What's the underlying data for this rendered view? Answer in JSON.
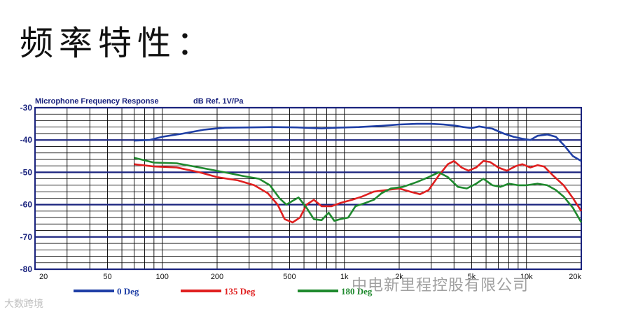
{
  "heading": "频率特性：",
  "watermark_right": "中电新里程控股有限公司",
  "watermark_left": "大数跨境",
  "chart_data": {
    "type": "line",
    "title": "Microphone Frequency Response",
    "units_label": "dB Ref. 1V/Pa",
    "x_scale": "log",
    "xlim": [
      20,
      20000
    ],
    "ylim": [
      -80,
      -30
    ],
    "y_ticks": [
      -30,
      -40,
      -50,
      -60,
      -70,
      -80
    ],
    "y_tick_labels": [
      "-30",
      "-40",
      "-50",
      "-60",
      "-70",
      "-80"
    ],
    "x_ticks": [
      20,
      50,
      100,
      200,
      500,
      1000,
      2000,
      5000,
      10000,
      20000
    ],
    "x_tick_labels": [
      "20",
      "50",
      "100",
      "200",
      "500",
      "1k",
      "2k",
      "5k",
      "10k",
      "20k"
    ],
    "grid": true,
    "legend_placement": "bottom",
    "series": [
      {
        "name": "0 Deg",
        "color": "#1f3fa6",
        "points": [
          [
            70,
            -40.2
          ],
          [
            85,
            -40
          ],
          [
            100,
            -39
          ],
          [
            130,
            -38
          ],
          [
            170,
            -36.8
          ],
          [
            220,
            -36.2
          ],
          [
            300,
            -36.1
          ],
          [
            400,
            -36
          ],
          [
            550,
            -36.1
          ],
          [
            750,
            -36.4
          ],
          [
            900,
            -36.2
          ],
          [
            1200,
            -36
          ],
          [
            1600,
            -35.6
          ],
          [
            2000,
            -35.2
          ],
          [
            2500,
            -35
          ],
          [
            3000,
            -35
          ],
          [
            3500,
            -35.2
          ],
          [
            4000,
            -35.5
          ],
          [
            4500,
            -36
          ],
          [
            5000,
            -36.3
          ],
          [
            5500,
            -35.8
          ],
          [
            6500,
            -36.5
          ],
          [
            7500,
            -38
          ],
          [
            8500,
            -39
          ],
          [
            9500,
            -39.6
          ],
          [
            10500,
            -40
          ],
          [
            11500,
            -38.7
          ],
          [
            13000,
            -38.3
          ],
          [
            14500,
            -39
          ],
          [
            16000,
            -41.5
          ],
          [
            18000,
            -45
          ],
          [
            20000,
            -46.5
          ]
        ]
      },
      {
        "name": "135 Deg",
        "color": "#e02020",
        "points": [
          [
            70,
            -47.5
          ],
          [
            90,
            -48.2
          ],
          [
            120,
            -48.5
          ],
          [
            160,
            -50
          ],
          [
            200,
            -51.5
          ],
          [
            260,
            -52.5
          ],
          [
            320,
            -54
          ],
          [
            380,
            -56.5
          ],
          [
            430,
            -60
          ],
          [
            470,
            -64.5
          ],
          [
            520,
            -65.5
          ],
          [
            570,
            -64
          ],
          [
            620,
            -60
          ],
          [
            680,
            -58.5
          ],
          [
            750,
            -60.5
          ],
          [
            850,
            -60.5
          ],
          [
            950,
            -59.5
          ],
          [
            1100,
            -58.5
          ],
          [
            1250,
            -57.5
          ],
          [
            1450,
            -56
          ],
          [
            1700,
            -55.5
          ],
          [
            2000,
            -55
          ],
          [
            2300,
            -56
          ],
          [
            2600,
            -56.8
          ],
          [
            2900,
            -55.5
          ],
          [
            3300,
            -51
          ],
          [
            3700,
            -47.5
          ],
          [
            4000,
            -46.5
          ],
          [
            4400,
            -48.5
          ],
          [
            4800,
            -49.5
          ],
          [
            5300,
            -48.5
          ],
          [
            5800,
            -46.5
          ],
          [
            6300,
            -46.8
          ],
          [
            7000,
            -48.5
          ],
          [
            7800,
            -49.5
          ],
          [
            8800,
            -48
          ],
          [
            9500,
            -47.5
          ],
          [
            10500,
            -48.5
          ],
          [
            11500,
            -47.8
          ],
          [
            12500,
            -48.2
          ],
          [
            14000,
            -51
          ],
          [
            16000,
            -54
          ],
          [
            18000,
            -58
          ],
          [
            20000,
            -62
          ]
        ]
      },
      {
        "name": "180 Deg",
        "color": "#1f8a2e",
        "points": [
          [
            70,
            -45.5
          ],
          [
            90,
            -47
          ],
          [
            120,
            -47.2
          ],
          [
            160,
            -48.5
          ],
          [
            220,
            -50
          ],
          [
            280,
            -51.2
          ],
          [
            340,
            -52
          ],
          [
            390,
            -54
          ],
          [
            440,
            -58
          ],
          [
            480,
            -60
          ],
          [
            520,
            -58.8
          ],
          [
            560,
            -57.8
          ],
          [
            620,
            -61
          ],
          [
            680,
            -64.5
          ],
          [
            750,
            -64.8
          ],
          [
            820,
            -62.5
          ],
          [
            880,
            -65
          ],
          [
            950,
            -64.5
          ],
          [
            1050,
            -64
          ],
          [
            1150,
            -60.5
          ],
          [
            1300,
            -59.5
          ],
          [
            1450,
            -58.5
          ],
          [
            1600,
            -56.5
          ],
          [
            1800,
            -55
          ],
          [
            2100,
            -54.5
          ],
          [
            2500,
            -53
          ],
          [
            2900,
            -51.5
          ],
          [
            3300,
            -50
          ],
          [
            3700,
            -51.5
          ],
          [
            4200,
            -54.5
          ],
          [
            4700,
            -55
          ],
          [
            5300,
            -53.5
          ],
          [
            5800,
            -52
          ],
          [
            6500,
            -54
          ],
          [
            7200,
            -54.5
          ],
          [
            8000,
            -53.5
          ],
          [
            9000,
            -54
          ],
          [
            10000,
            -54
          ],
          [
            11500,
            -53.5
          ],
          [
            13000,
            -54
          ],
          [
            14500,
            -55.5
          ],
          [
            16000,
            -57.5
          ],
          [
            18000,
            -61
          ],
          [
            20000,
            -65.5
          ]
        ]
      }
    ]
  }
}
